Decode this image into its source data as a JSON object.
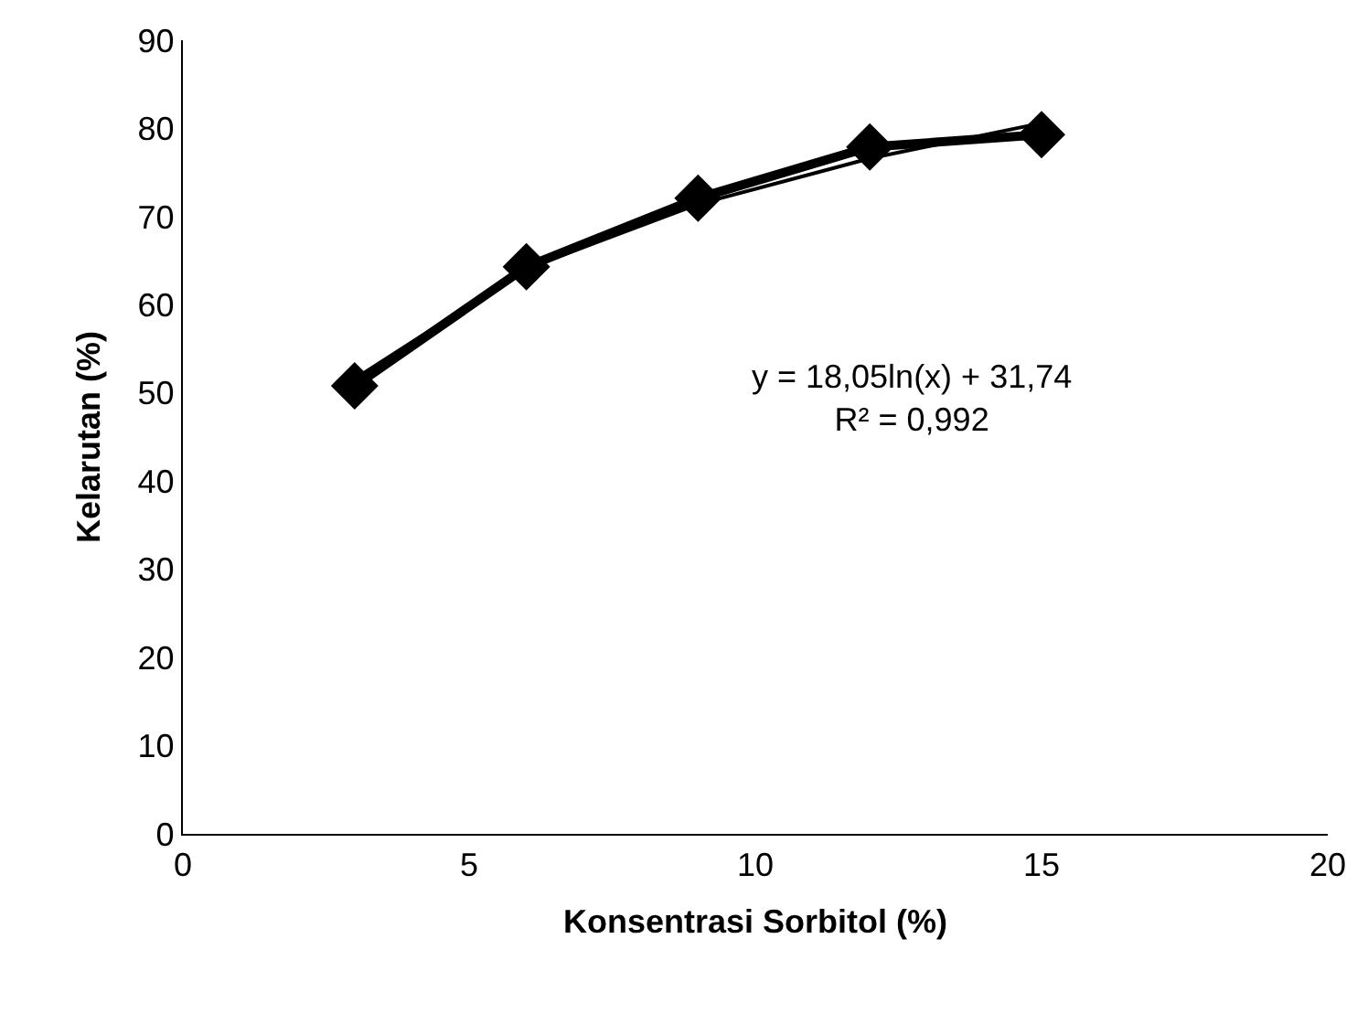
{
  "chart_data": {
    "type": "line",
    "marker": "diamond",
    "xlabel": "Konsentrasi Sorbitol (%)",
    "ylabel": "Kelarutan (%)",
    "x": [
      3,
      6,
      9,
      12,
      15
    ],
    "series": [
      {
        "color": "#000000",
        "values": [
          50.8,
          64.3,
          72.1,
          77.9,
          79.3
        ]
      },
      {
        "color": "#000000",
        "type": "line",
        "marker": "none",
        "x": [
          3,
          6,
          9,
          12,
          15
        ],
        "values": [
          51.6,
          64.1,
          71.4,
          76.6,
          80.6
        ]
      }
    ],
    "xlim": [
      0,
      20
    ],
    "xticks": [
      0,
      5,
      10,
      15,
      20
    ],
    "ylim": [
      0,
      90
    ],
    "yticks": [
      0,
      10,
      20,
      30,
      40,
      50,
      60,
      70,
      80,
      90
    ],
    "annotations": [
      "y = 18,05ln(x) + 31,74\nR² = 0,992"
    ]
  }
}
